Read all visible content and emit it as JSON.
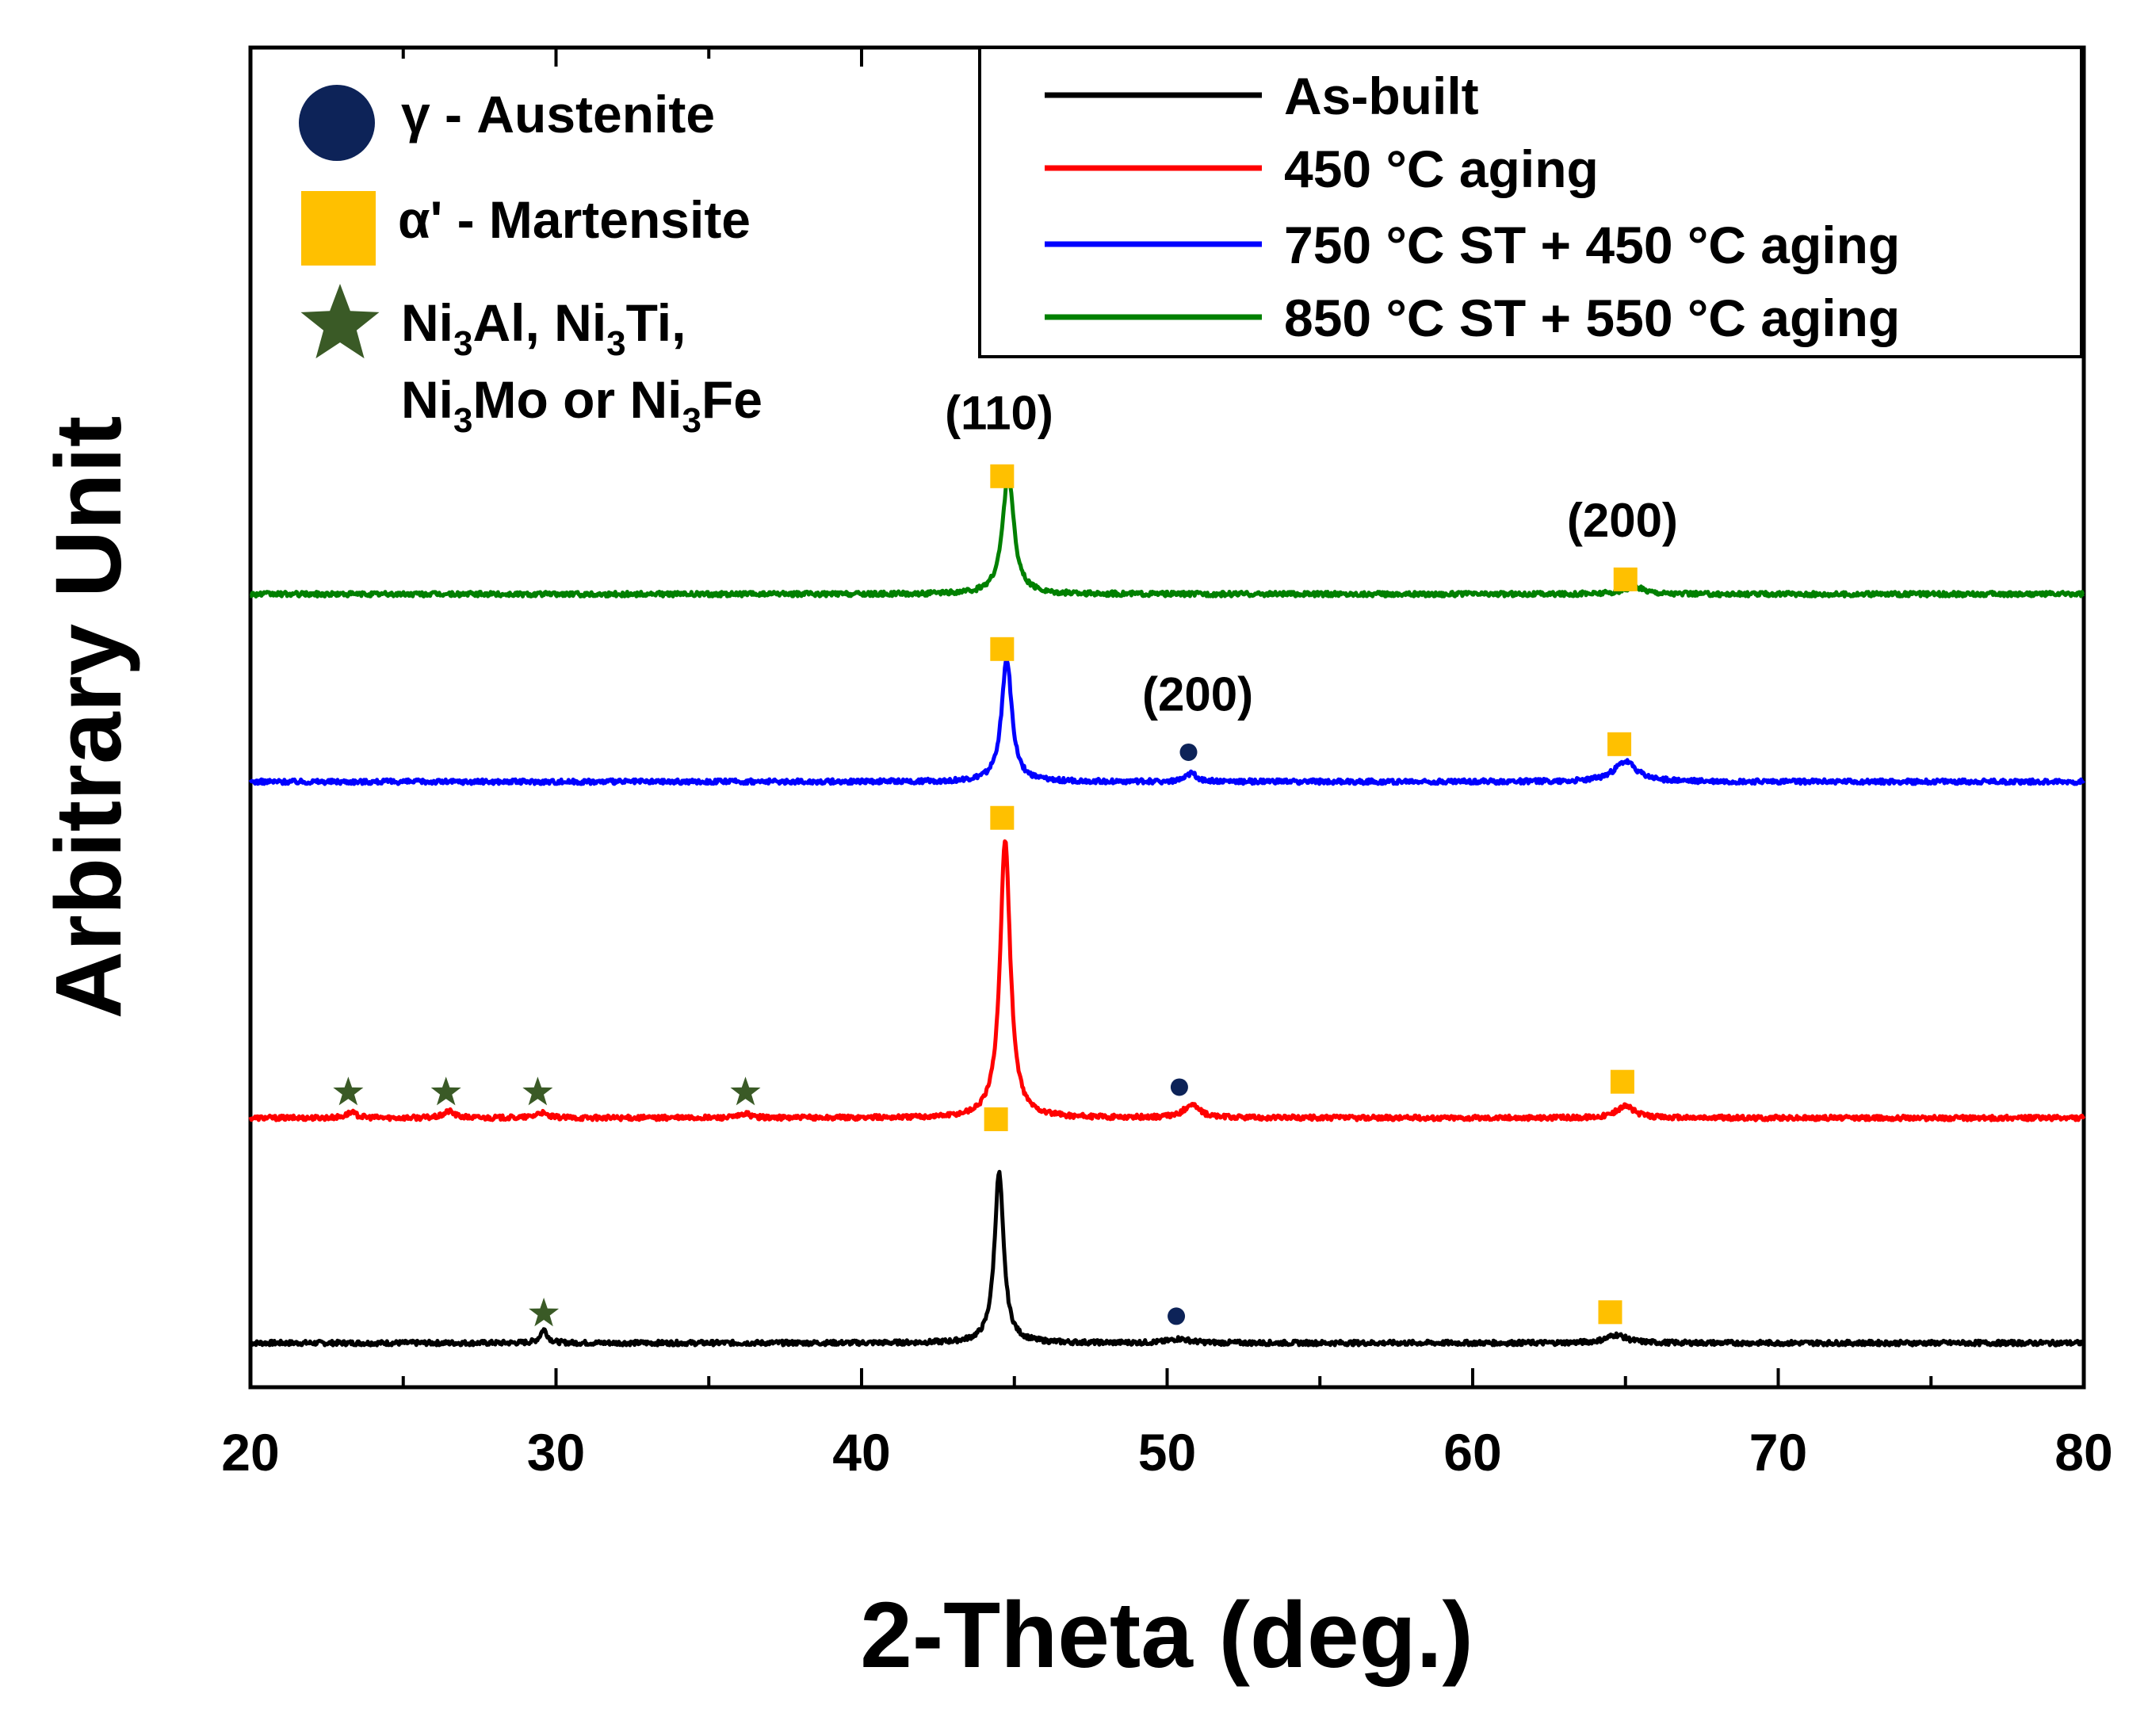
{
  "chart_data": {
    "type": "line",
    "title": "",
    "xlabel": "2-Theta (deg.)",
    "ylabel": "Arbitrary Unit",
    "xlim": [
      20,
      80
    ],
    "ylim": [
      0,
      100
    ],
    "xticks": [
      "20",
      "30",
      "40",
      "50",
      "60",
      "70",
      "80"
    ],
    "yticks": [],
    "grid": false,
    "legend_position": "top-right",
    "series": [
      {
        "name": "As-built",
        "color": "#000000",
        "baseline": 3.3,
        "peaks": [
          {
            "pos": 29.6,
            "height": 1.0,
            "width": 0.14
          },
          {
            "pos": 44.5,
            "height": 12.7,
            "width": 0.18
          },
          {
            "pos": 50.4,
            "height": 0.3,
            "width": 0.4
          },
          {
            "pos": 64.7,
            "height": 0.6,
            "width": 0.4
          }
        ]
      },
      {
        "name": "450 °C aging",
        "color": "#ff0000",
        "baseline": 20.1,
        "peaks": [
          {
            "pos": 23.3,
            "height": 0.4,
            "width": 0.2
          },
          {
            "pos": 26.5,
            "height": 0.5,
            "width": 0.2
          },
          {
            "pos": 29.5,
            "height": 0.4,
            "width": 0.2
          },
          {
            "pos": 36.2,
            "height": 0.3,
            "width": 0.2
          },
          {
            "pos": 44.7,
            "height": 20.8,
            "width": 0.2
          },
          {
            "pos": 50.8,
            "height": 1.0,
            "width": 0.3
          },
          {
            "pos": 65.0,
            "height": 0.9,
            "width": 0.35
          }
        ]
      },
      {
        "name": "750 °C ST + 450 °C aging",
        "color": "#0000ff",
        "baseline": 45.2,
        "peaks": [
          {
            "pos": 44.75,
            "height": 9.2,
            "width": 0.2
          },
          {
            "pos": 50.8,
            "height": 0.6,
            "width": 0.2
          },
          {
            "pos": 65.0,
            "height": 1.5,
            "width": 0.45
          }
        ]
      },
      {
        "name": "850 °C ST + 550 °C aging",
        "color": "#008000",
        "baseline": 59.2,
        "peaks": [
          {
            "pos": 44.8,
            "height": 9.0,
            "width": 0.22
          },
          {
            "pos": 65.3,
            "height": 0.5,
            "width": 0.45
          }
        ]
      }
    ],
    "phase_legend": [
      {
        "symbol": "circle",
        "color": "#0d2358",
        "label": "γ - Austenite"
      },
      {
        "symbol": "square",
        "color": "#ffc000",
        "label": "α' - Martensite"
      },
      {
        "symbol": "star",
        "color": "#3a5a26",
        "label_line1": "Ni3Al, Ni3Ti,",
        "label_line2": "Ni3Mo or Ni3Fe"
      }
    ],
    "markers": [
      {
        "symbol": "square",
        "x": 44.6,
        "y": 68.0
      },
      {
        "symbol": "square",
        "x": 65.0,
        "y": 60.3
      },
      {
        "symbol": "square",
        "x": 44.6,
        "y": 55.1
      },
      {
        "symbol": "circle",
        "x": 50.7,
        "y": 47.4
      },
      {
        "symbol": "square",
        "x": 64.8,
        "y": 48.0
      },
      {
        "symbol": "square",
        "x": 44.6,
        "y": 42.5
      },
      {
        "symbol": "star",
        "x": 23.2,
        "y": 22.0
      },
      {
        "symbol": "star",
        "x": 26.4,
        "y": 22.0
      },
      {
        "symbol": "star",
        "x": 29.4,
        "y": 22.0
      },
      {
        "symbol": "star",
        "x": 36.2,
        "y": 22.0
      },
      {
        "symbol": "circle",
        "x": 50.4,
        "y": 22.4
      },
      {
        "symbol": "square",
        "x": 64.9,
        "y": 22.8
      },
      {
        "symbol": "square",
        "x": 44.4,
        "y": 20.0
      },
      {
        "symbol": "star",
        "x": 29.6,
        "y": 5.5
      },
      {
        "symbol": "circle",
        "x": 50.3,
        "y": 5.3
      },
      {
        "symbol": "square",
        "x": 64.5,
        "y": 5.6
      }
    ],
    "annotations": [
      {
        "text": "(110)",
        "x": 44.5,
        "y": 71.5
      },
      {
        "text": "(200)",
        "x": 64.9,
        "y": 63.5
      },
      {
        "text": "(200)",
        "x": 51.0,
        "y": 50.5
      }
    ]
  }
}
